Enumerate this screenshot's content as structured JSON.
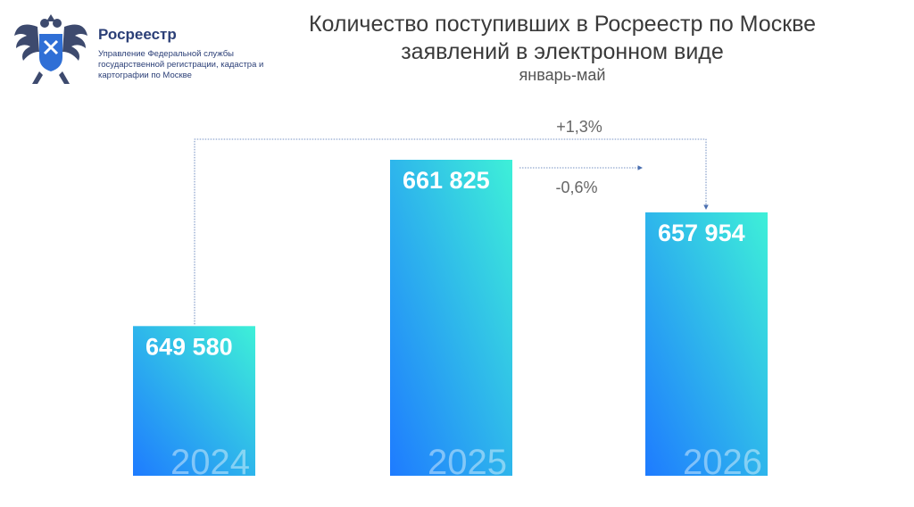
{
  "logo": {
    "name": "Росреестр",
    "subtitle": "Управление Федеральной службы государственной регистрации, кадастра и картографии по Москве"
  },
  "chart_data": {
    "type": "bar",
    "title": "Количество поступивших в Росреестр по Москве заявлений в электронном виде",
    "subtitle": "январь-май",
    "categories": [
      "2024",
      "2025",
      "2026"
    ],
    "values": [
      649580,
      661825,
      657954
    ],
    "value_labels": [
      "649 580",
      "661 825",
      "657 954"
    ],
    "annotations": [
      {
        "from": "2024",
        "to": "2026",
        "label": "+1,3%"
      },
      {
        "from": "2025",
        "to": "2026",
        "label": "-0,6%"
      }
    ],
    "colors": {
      "bar_bottom_left": "#1e7bff",
      "bar_top_right": "#3ef0d8",
      "arrow": "#4a6fb0"
    }
  }
}
